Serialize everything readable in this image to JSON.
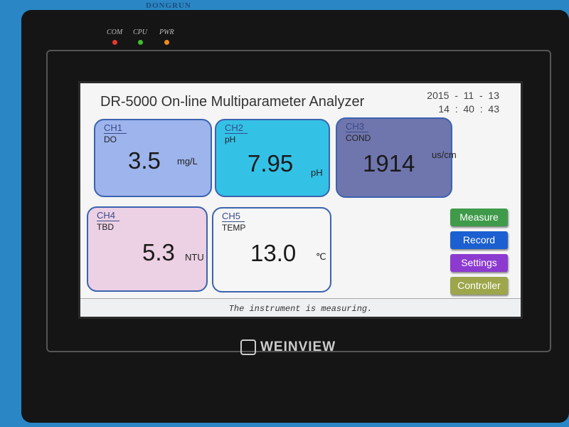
{
  "brand": "DONGRUN",
  "leds": [
    {
      "label": "COM",
      "color": "#e8372c"
    },
    {
      "label": "CPU",
      "color": "#3fbf2c"
    },
    {
      "label": "PWR",
      "color": "#f08a1c"
    }
  ],
  "header": {
    "title": "DR-5000 On-line Multiparameter Analyzer",
    "date": "2015  -  11  -  13",
    "time": "14  :  40  :  43"
  },
  "channels": [
    {
      "channel": "CH1",
      "param": "DO",
      "value": "3.5",
      "unit": "mg/L",
      "color": "#9db4ec"
    },
    {
      "channel": "CH2",
      "param": "pH",
      "value": "7.95",
      "unit": "pH",
      "color": "#34c1e6"
    },
    {
      "channel": "CH3",
      "param": "COND",
      "value": "1914",
      "unit": "us/cm",
      "color": "#6f75ad"
    },
    {
      "channel": "CH4",
      "param": "TBD",
      "value": "5.3",
      "unit": "NTU",
      "color": "#ecd0e4"
    },
    {
      "channel": "CH5",
      "param": "TEMP",
      "value": "13.0",
      "unit": "℃",
      "color": "#f6f6f6"
    }
  ],
  "buttons": {
    "measure": "Measure",
    "record": "Record",
    "settings": "Settings",
    "controller": "Controller"
  },
  "button_colors": {
    "measure": "#3f9a4a",
    "record": "#1c5fd0",
    "settings": "#8c3ad0",
    "controller": "#9da64a"
  },
  "status": "The instrument is measuring.",
  "logo": "WEINVIEW"
}
